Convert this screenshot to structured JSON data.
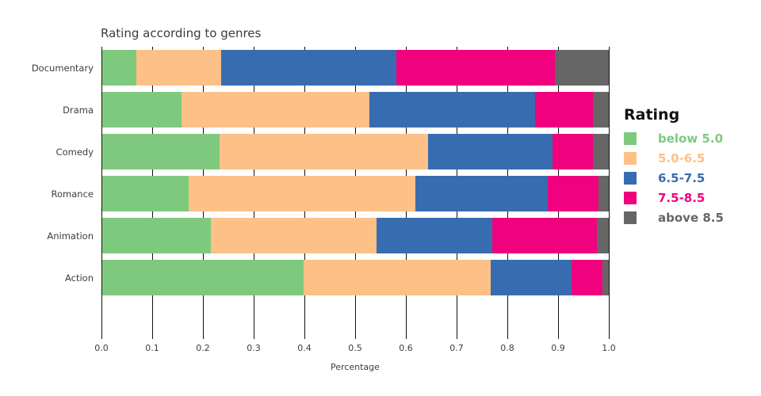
{
  "page": {
    "background": "#ffffff"
  },
  "chart_data": {
    "type": "bar",
    "orientation": "horizontal",
    "stacked": true,
    "title": "Rating according to genres",
    "xlabel": "Percentage",
    "ylabel": "",
    "grid": true,
    "xlim": [
      0.0,
      1.0
    ],
    "x_ticks": [
      "0.0",
      "0.1",
      "0.2",
      "0.3",
      "0.4",
      "0.5",
      "0.6",
      "0.7",
      "0.8",
      "0.9",
      "1.0"
    ],
    "categories": [
      "Documentary",
      "Drama",
      "Comedy",
      "Romance",
      "Animation",
      "Action"
    ],
    "legend": {
      "title": "Rating",
      "position": "right"
    },
    "series": [
      {
        "name": "below 5.0",
        "color": "#7FC97F",
        "values": [
          0.068,
          0.156,
          0.232,
          0.171,
          0.215,
          0.397
        ]
      },
      {
        "name": "5.0-6.5",
        "color": "#FDC086",
        "values": [
          0.167,
          0.371,
          0.411,
          0.447,
          0.327,
          0.37
        ]
      },
      {
        "name": "6.5-7.5",
        "color": "#386CB0",
        "values": [
          0.346,
          0.327,
          0.246,
          0.261,
          0.228,
          0.16
        ]
      },
      {
        "name": "7.5-8.5",
        "color": "#F0027F",
        "values": [
          0.312,
          0.115,
          0.08,
          0.1,
          0.206,
          0.061
        ]
      },
      {
        "name": "above 8.5",
        "color": "#666666",
        "values": [
          0.107,
          0.031,
          0.031,
          0.021,
          0.024,
          0.012
        ]
      }
    ]
  }
}
